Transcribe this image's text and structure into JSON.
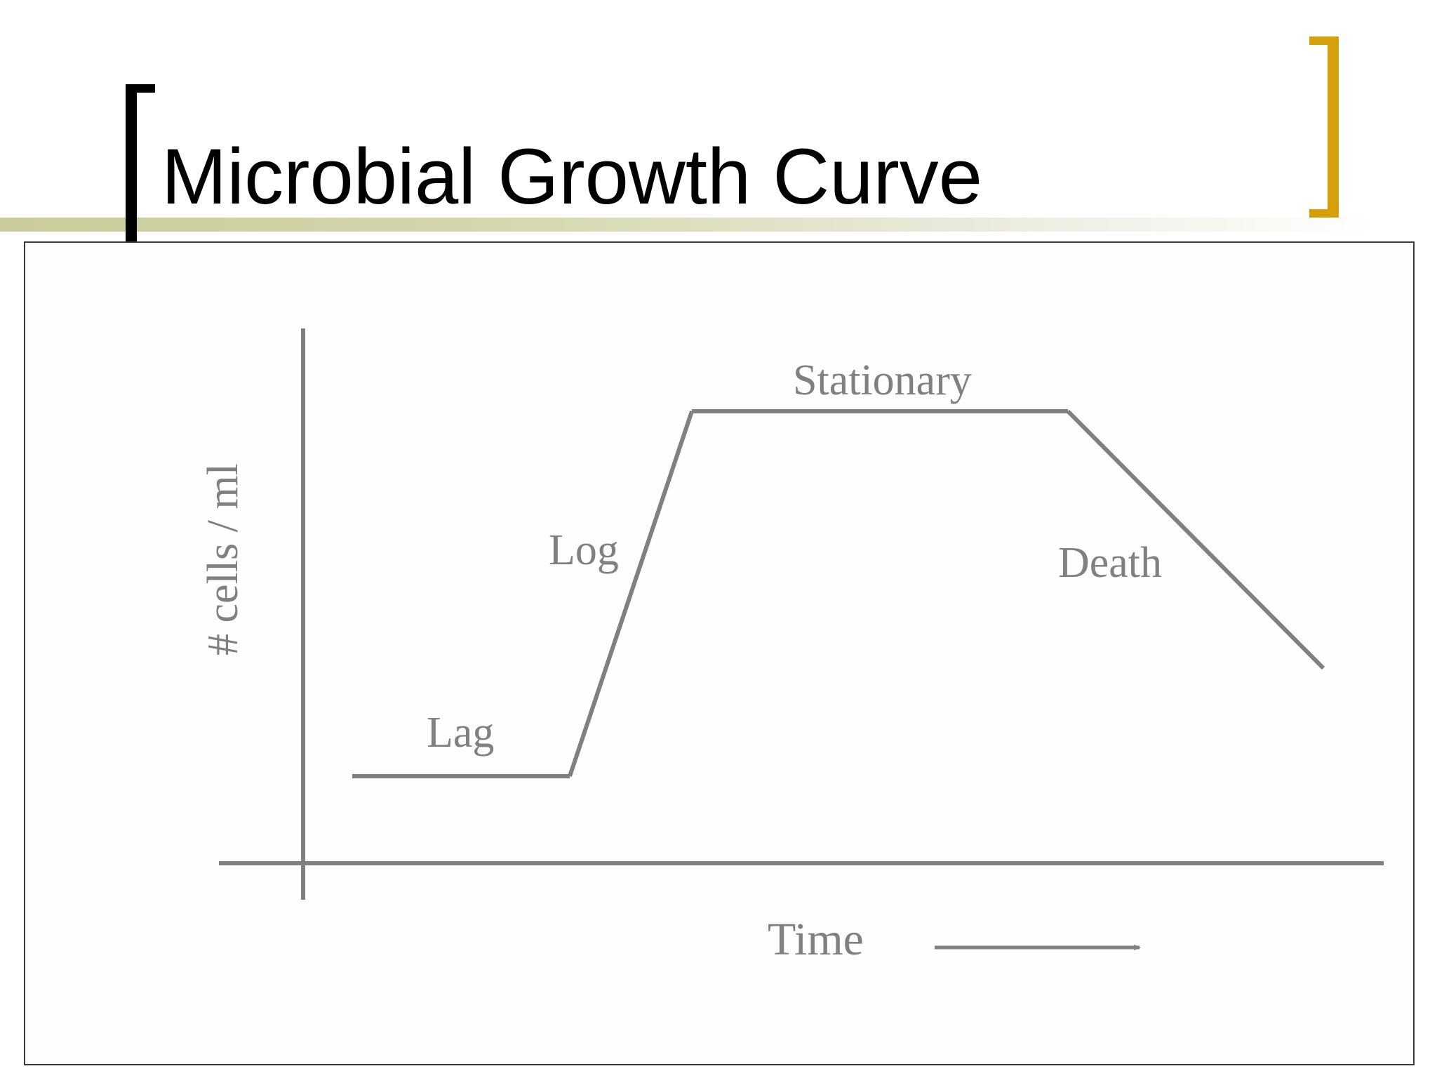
{
  "slide": {
    "title": "Microbial Growth Curve"
  },
  "diagram": {
    "y_axis_label": "# cells / ml",
    "x_axis_label": "Time",
    "phases": [
      {
        "id": "lag",
        "label": "Lag"
      },
      {
        "id": "log",
        "label": "Log"
      },
      {
        "id": "stationary",
        "label": "Stationary"
      },
      {
        "id": "death",
        "label": "Death"
      }
    ]
  },
  "colors": {
    "title_text": "#000000",
    "left_bracket": "#000000",
    "right_bracket": "#d4a10c",
    "title_band": "#c9cc9a",
    "diagram_lines": "#808080",
    "diagram_text": "#808080",
    "box_border": "#3a3a3a"
  }
}
